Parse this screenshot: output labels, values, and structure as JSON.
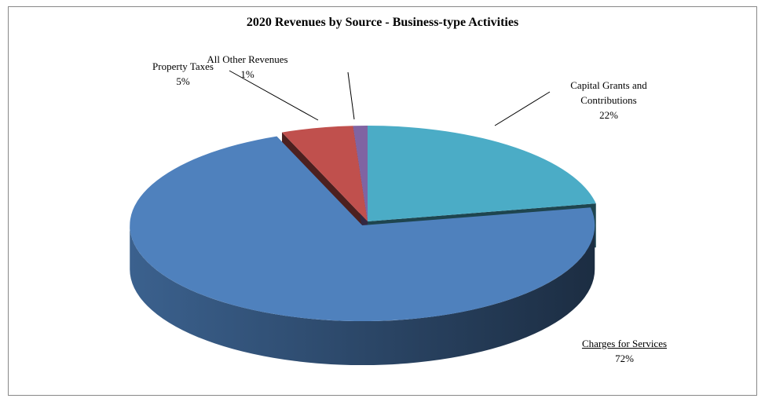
{
  "chart_data": {
    "type": "pie3d",
    "title": "2020 Revenues by Source - Business-type Activities",
    "categories": [
      "Capital Grants and Contributions",
      "Charges for Services",
      "Property Taxes",
      "All Other Revenues"
    ],
    "values": [
      22,
      72,
      5,
      1
    ],
    "value_labels": [
      "22%",
      "72%",
      "5%",
      "1%"
    ],
    "colors": [
      "#4bacc6",
      "#4f81bd",
      "#c0504d",
      "#8064a2"
    ]
  }
}
